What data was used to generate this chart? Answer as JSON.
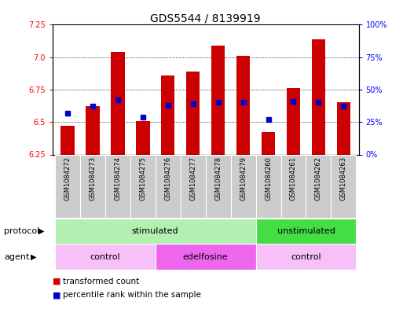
{
  "title": "GDS5544 / 8139919",
  "samples": [
    "GSM1084272",
    "GSM1084273",
    "GSM1084274",
    "GSM1084275",
    "GSM1084276",
    "GSM1084277",
    "GSM1084278",
    "GSM1084279",
    "GSM1084260",
    "GSM1084261",
    "GSM1084262",
    "GSM1084263"
  ],
  "transformed_counts": [
    6.47,
    6.62,
    7.04,
    6.51,
    6.86,
    6.89,
    7.09,
    7.01,
    6.42,
    6.76,
    7.14,
    6.65
  ],
  "percentile_ranks": [
    32,
    37,
    42,
    29,
    38,
    39,
    40,
    40,
    27,
    41,
    40,
    37
  ],
  "bar_bottom": 6.25,
  "ylim_left": [
    6.25,
    7.25
  ],
  "ylim_right": [
    0,
    100
  ],
  "yticks_left": [
    6.25,
    6.5,
    6.75,
    7.0,
    7.25
  ],
  "yticks_right": [
    0,
    25,
    50,
    75,
    100
  ],
  "ytick_labels_right": [
    "0%",
    "25%",
    "50%",
    "75%",
    "100%"
  ],
  "bar_color": "#cc0000",
  "dot_color": "#0000cc",
  "protocol_groups": [
    {
      "label": "stimulated",
      "start": 0,
      "end": 8,
      "color": "#b2f0b2"
    },
    {
      "label": "unstimulated",
      "start": 8,
      "end": 12,
      "color": "#44dd44"
    }
  ],
  "agent_groups": [
    {
      "label": "control",
      "start": 0,
      "end": 4,
      "color": "#f8c0f8"
    },
    {
      "label": "edelfosine",
      "start": 4,
      "end": 8,
      "color": "#ee66ee"
    },
    {
      "label": "control",
      "start": 8,
      "end": 12,
      "color": "#f8c0f8"
    }
  ],
  "legend_items": [
    {
      "label": "transformed count",
      "color": "#cc0000"
    },
    {
      "label": "percentile rank within the sample",
      "color": "#0000cc"
    }
  ],
  "xlabel_protocol": "protocol",
  "xlabel_agent": "agent",
  "title_fontsize": 10,
  "tick_fontsize": 7,
  "label_fontsize": 8,
  "sample_label_fontsize": 6,
  "gray_cell_color": "#cccccc"
}
